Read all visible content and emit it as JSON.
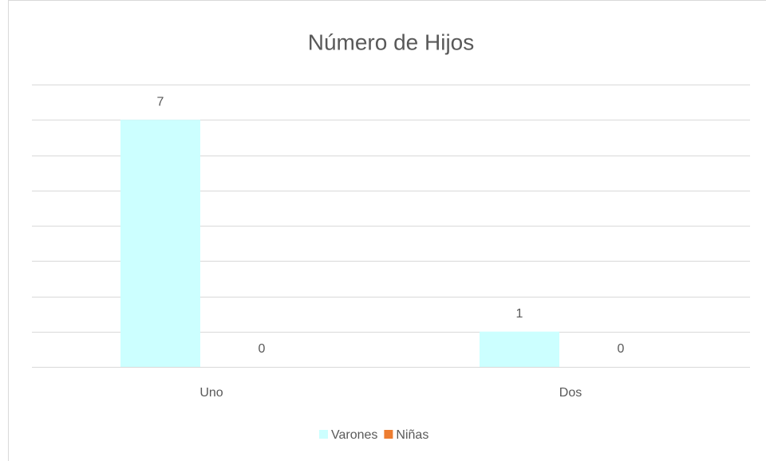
{
  "chart_data": {
    "type": "bar",
    "title": "Número de Hijos",
    "categories": [
      "Uno",
      "Dos"
    ],
    "series": [
      {
        "name": "Varones",
        "color": "#ccffff",
        "values": [
          7,
          1
        ]
      },
      {
        "name": "Niñas",
        "color": "#ed7d31",
        "values": [
          0,
          0
        ]
      }
    ],
    "ylim": [
      0,
      8
    ],
    "yticks": [
      0,
      1,
      2,
      3,
      4,
      5,
      6,
      7,
      8
    ],
    "grid": true
  }
}
